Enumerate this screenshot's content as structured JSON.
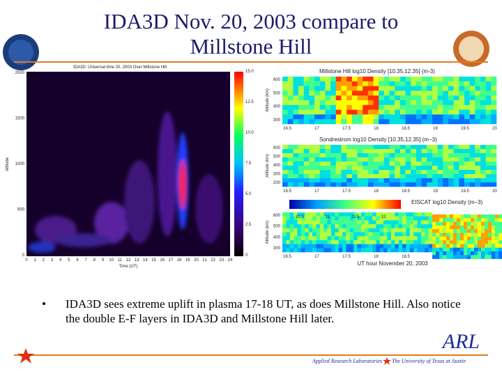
{
  "header": {
    "title_lines": [
      "IDA3D Nov. 20, 2003 compare to",
      "Millstone Hill"
    ]
  },
  "left_plot": {
    "title": "IDA3D: Universal time 20, 2003 Over Millstone Hill",
    "y_label": "Altitude",
    "x_label": "Time (UT)",
    "yticks": [
      "2000",
      "1500",
      "1000",
      "500",
      "0"
    ],
    "xticks": [
      "0",
      "1",
      "2",
      "3",
      "4",
      "5",
      "6",
      "7",
      "8",
      "9",
      "10",
      "11",
      "12",
      "13",
      "14",
      "15",
      "16",
      "17",
      "18",
      "19",
      "20",
      "21",
      "22",
      "23",
      "24"
    ],
    "colorbar_ticks": [
      "15.0",
      "12.5",
      "10.0",
      "7.5",
      "5.0",
      "2.5",
      "0"
    ]
  },
  "right_plots": {
    "panels": [
      {
        "title": "Millstone Hill log10 Density [10.35,12.35] (m-3)",
        "y_label": "Altitude (km)",
        "yticks": [
          "600",
          "500",
          "400",
          "300"
        ]
      },
      {
        "title": "Sondrestrom log10 Density [10.35,12.35] (m−3)",
        "y_label": "Altitude (km)",
        "yticks": [
          "600",
          "500",
          "400",
          "300",
          "200"
        ]
      },
      {
        "title": "EISCAT log10 Density (m−3)",
        "y_label": "Altitude (km)",
        "yticks": [
          "600",
          "500",
          "400",
          "300"
        ]
      }
    ],
    "xticks": [
      "16.5",
      "17",
      "17.5",
      "18",
      "18.5",
      "19",
      "19.5",
      "20"
    ],
    "eiscat_colorbar_ticks": [
      "10.5",
      "11",
      "11.5",
      "12"
    ],
    "x_label": "UT hour November 20, 2003"
  },
  "bullet": {
    "text": "IDA3D sees extreme uplift in plasma 17-18 UT, as does Millstone Hill.  Also notice the double E-F layers in IDA3D and Millstone Hill later."
  },
  "footer": {
    "logo": "ARL",
    "left": "Applied Research Laboratories",
    "right": "The University of Texas at Austin"
  }
}
